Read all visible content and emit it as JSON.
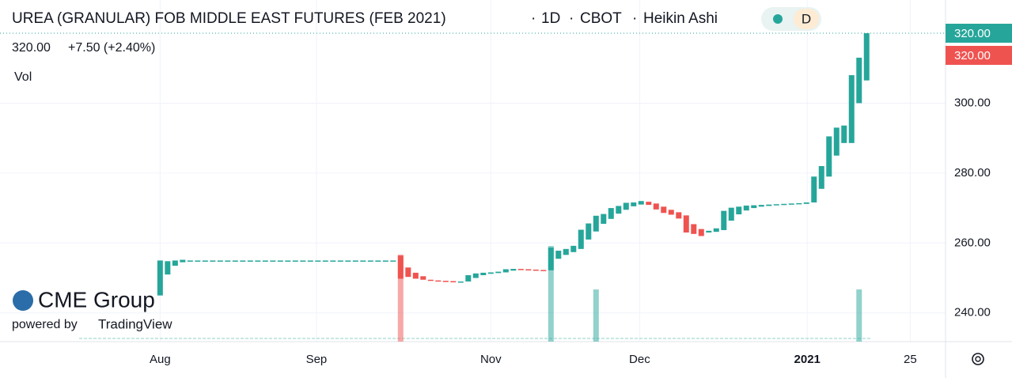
{
  "chart_data": {
    "type": "candlestick",
    "title": "UREA (GRANULAR) FOB MIDDLE EAST FUTURES (FEB 2021)",
    "interval": "1D",
    "exchange": "CBOT",
    "chart_style": "Heikin Ashi",
    "badge": "D",
    "legend": {
      "price": "320.00",
      "change": "+7.50 (+2.40%)",
      "volume_label": "Vol"
    },
    "watermark": {
      "brand": "CME Group",
      "powered": "powered by",
      "platform": "TradingView"
    },
    "up_color": "#26a69a",
    "down_color": "#ef5350",
    "grid": true,
    "xlim": [
      -21.3,
      104.5
    ],
    "xticks": [
      {
        "value": 0,
        "label": "Aug"
      },
      {
        "value": 20.8,
        "label": "Sep"
      },
      {
        "value": 44,
        "label": "Nov"
      },
      {
        "value": 63.8,
        "label": "Dec"
      },
      {
        "value": 86.1,
        "label": "2021"
      },
      {
        "value": 99.8,
        "label": "25"
      }
    ],
    "ylim": [
      231.8,
      329.5
    ],
    "yticks": [
      {
        "value": 240,
        "label": "240.00"
      },
      {
        "value": 260,
        "label": "260.00"
      },
      {
        "value": 280,
        "label": "280.00"
      },
      {
        "value": 300,
        "label": "300.00"
      }
    ],
    "price_labels": [
      {
        "value": 320,
        "label": "320.00",
        "color": "#26a69a"
      },
      {
        "value": 320,
        "label": "320.00",
        "color": "#ef5350"
      }
    ],
    "x": [
      0,
      1,
      2,
      3,
      4,
      5,
      6,
      7,
      8,
      9,
      10,
      11,
      12,
      13,
      14,
      15,
      16,
      17,
      18,
      19,
      20,
      21,
      22,
      23,
      24,
      25,
      26,
      27,
      28,
      29,
      30,
      31,
      32,
      33,
      34,
      35,
      36,
      37,
      38,
      39,
      40,
      41,
      42,
      43,
      44,
      45,
      46,
      47,
      48,
      49,
      50,
      51,
      52,
      53,
      54,
      55,
      56,
      57,
      58,
      59,
      60,
      61,
      62,
      63,
      64,
      65,
      66,
      67,
      68,
      69,
      70,
      71,
      72,
      73,
      74,
      75,
      76,
      77,
      78,
      79,
      80,
      81,
      82,
      83,
      84,
      85,
      86,
      87,
      88,
      89,
      90,
      91,
      92,
      93,
      94
    ],
    "open": [
      245,
      251,
      253.5,
      254.5,
      255,
      255,
      255,
      255,
      255,
      255,
      255,
      255,
      255,
      255,
      255,
      255,
      255,
      255,
      255,
      255,
      255,
      255,
      255,
      255,
      255,
      255,
      255,
      255,
      255,
      255,
      255,
      255,
      256.4,
      253,
      251.5,
      250.5,
      249.5,
      249.3,
      249.2,
      249.1,
      249,
      249,
      250,
      250.8,
      251.2,
      251.4,
      251.6,
      252.1,
      252.6,
      252.5,
      252.4,
      252.3,
      252.2,
      255.5,
      256.6,
      257.4,
      258.3,
      261,
      263.3,
      265.5,
      266.9,
      268.4,
      269.5,
      270.5,
      271,
      271.8,
      271.3,
      270.4,
      269.5,
      268.8,
      267.9,
      265.4,
      264,
      263,
      263.2,
      263.7,
      266.4,
      268.2,
      269.3,
      270,
      270.4,
      270.6,
      270.8,
      270.9,
      271,
      271.1,
      271.2,
      271.6,
      275.5,
      279,
      285,
      288.6,
      288.6,
      300,
      306.5
    ],
    "close": [
      255,
      254.8,
      255,
      255.2,
      255,
      255,
      255,
      255,
      255,
      255,
      255,
      255,
      255,
      255,
      255,
      255,
      255,
      255,
      255,
      255,
      255,
      255,
      255,
      255,
      255,
      255,
      255,
      255,
      255,
      255,
      255,
      255,
      249.8,
      250.3,
      249.8,
      249.5,
      249.3,
      249.2,
      249.1,
      249,
      249,
      250.8,
      251.3,
      251.5,
      251.6,
      251.8,
      252.5,
      252.6,
      252.4,
      252.3,
      252.2,
      252.1,
      258.7,
      257.8,
      258.3,
      259.2,
      263.8,
      265.6,
      267.8,
      268.3,
      270,
      270.6,
      271.5,
      271.6,
      272,
      270.9,
      269.6,
      268.6,
      268.1,
      267,
      263,
      262.6,
      262,
      263.5,
      264.2,
      269.2,
      270.1,
      270.4,
      270.7,
      270.8,
      270.9,
      271,
      271.1,
      271.2,
      271.3,
      271.4,
      271.6,
      279,
      282,
      290.5,
      293,
      293.6,
      308,
      313,
      320
    ],
    "volume": {
      "x": [
        32,
        52,
        58,
        93
      ],
      "values": [
        5,
        5.5,
        3,
        3
      ],
      "ylim": [
        0,
        10
      ]
    }
  }
}
